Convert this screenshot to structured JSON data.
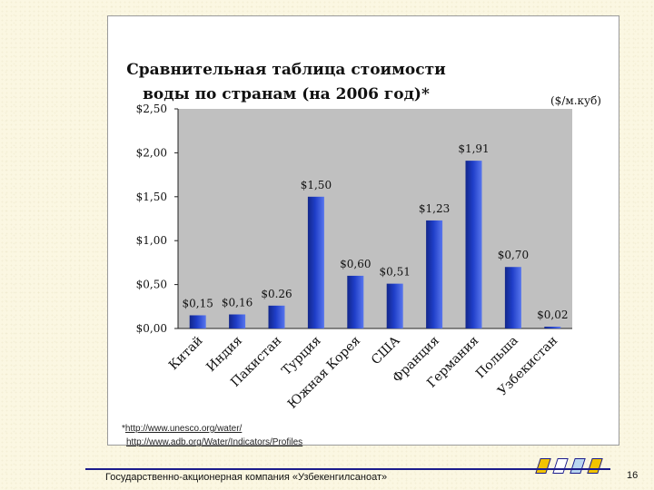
{
  "chart_data": {
    "type": "bar",
    "title": "Сравнительная таблица стоимости воды по странам (на 2006 год)*",
    "unit_label": "($/м.куб)",
    "categories": [
      "Китай",
      "Индия",
      "Пакистан",
      "Турция",
      "Южная Корея",
      "США",
      "Франция",
      "Германия",
      "Польша",
      "Узбекистан"
    ],
    "values": [
      0.15,
      0.16,
      0.26,
      1.5,
      0.6,
      0.51,
      1.23,
      1.91,
      0.7,
      0.02
    ],
    "value_labels": [
      "$0,15",
      "$0,16",
      "$0.26",
      "$1,50",
      "$0,60",
      "$0,51",
      "$1,23",
      "$1,91",
      "$0,70",
      "$0,02"
    ],
    "ylim": [
      0,
      2.5
    ],
    "y_ticks": [
      0,
      0.5,
      1.0,
      1.5,
      2.0,
      2.5
    ],
    "y_tick_labels": [
      "$0,00",
      "$0,50",
      "$1,00",
      "$1,50",
      "$2,00",
      "$2,50"
    ],
    "grid": false,
    "legend": "none",
    "colors": {
      "bar": "#1f3ec8",
      "bar_light": "#5876ee",
      "bar_dark": "#12268a",
      "plot_bg": "#c0c0c0"
    }
  },
  "footnote": {
    "marker": "*",
    "links": [
      "http://www.unesco.org/water/",
      "http://www.adb.org/Water/Indicators/Profiles"
    ]
  },
  "footer": {
    "company": "Государственно-акционерная компания «Узбекенгилсаноат»",
    "page_number": "16"
  }
}
